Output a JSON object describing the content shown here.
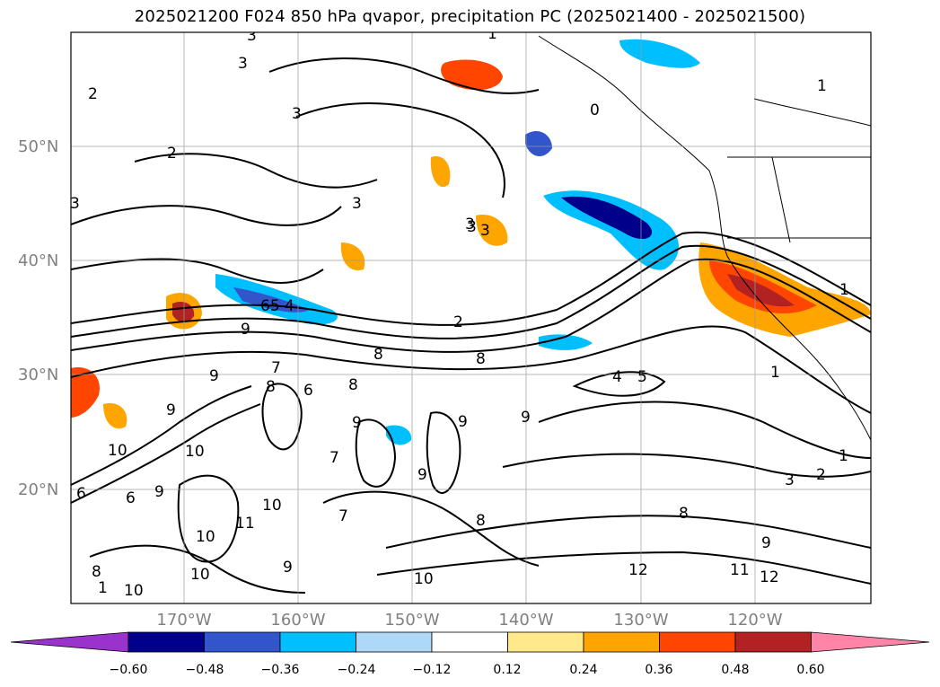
{
  "chart_data": {
    "type": "contour",
    "title": "2025021200 F024 850 hPa qvapor, precipitation PC (2025021400 - 2025021500)",
    "lon_range": [
      -180,
      -110
    ],
    "lat_range": [
      10,
      60
    ],
    "x_tick_labels": [
      "170°W",
      "160°W",
      "150°W",
      "140°W",
      "130°W",
      "120°W"
    ],
    "x_ticks": [
      -170,
      -160,
      -150,
      -140,
      -130,
      -120
    ],
    "y_tick_labels": [
      "20°N",
      "30°N",
      "40°N",
      "50°N"
    ],
    "y_ticks": [
      20,
      30,
      40,
      50
    ],
    "grid": true,
    "colorbar": {
      "orientation": "horizontal",
      "extend": "both",
      "levels": [
        -0.6,
        -0.48,
        -0.36,
        -0.24,
        -0.12,
        0.12,
        0.24,
        0.36,
        0.48,
        0.6
      ],
      "tick_labels": [
        "−0.60",
        "−0.48",
        "−0.36",
        "−0.24",
        "−0.12",
        "0.12",
        "0.24",
        "0.36",
        "0.48",
        "0.60"
      ],
      "colors": [
        "#9933cc",
        "#00008b",
        "#3355cc",
        "#00bfff",
        "#add8f7",
        "#ffffff",
        "#ffe98a",
        "#ffa500",
        "#ff4500",
        "#b22222",
        "#ff85a8"
      ]
    },
    "contour_labels": [
      {
        "text": "3"
      },
      {
        "text": "1"
      },
      {
        "text": "3"
      },
      {
        "text": "2"
      },
      {
        "text": "3"
      },
      {
        "text": "2"
      },
      {
        "text": "3"
      },
      {
        "text": "3"
      },
      {
        "text": "0"
      },
      {
        "text": "1"
      },
      {
        "text": "3"
      },
      {
        "text": "3"
      },
      {
        "text": "3"
      },
      {
        "text": "65 4"
      },
      {
        "text": "2"
      },
      {
        "text": "1"
      },
      {
        "text": "9"
      },
      {
        "text": "9"
      },
      {
        "text": "8"
      },
      {
        "text": "8"
      },
      {
        "text": "7"
      },
      {
        "text": "8"
      },
      {
        "text": "6"
      },
      {
        "text": "8"
      },
      {
        "text": "4"
      },
      {
        "text": "5"
      },
      {
        "text": "1"
      },
      {
        "text": "9"
      },
      {
        "text": "9"
      },
      {
        "text": "10"
      },
      {
        "text": "10"
      },
      {
        "text": "7"
      },
      {
        "text": "9"
      },
      {
        "text": "9"
      },
      {
        "text": "6"
      },
      {
        "text": "6"
      },
      {
        "text": "9"
      },
      {
        "text": "10"
      },
      {
        "text": "11"
      },
      {
        "text": "10"
      },
      {
        "text": "10"
      },
      {
        "text": "9"
      },
      {
        "text": "7"
      },
      {
        "text": "10"
      },
      {
        "text": "12"
      },
      {
        "text": "11"
      },
      {
        "text": "12"
      },
      {
        "text": "9"
      },
      {
        "text": "8"
      },
      {
        "text": "3"
      },
      {
        "text": "2"
      },
      {
        "text": "1"
      },
      {
        "text": "1"
      },
      {
        "text": "10"
      },
      {
        "text": "8"
      },
      {
        "text": "9"
      },
      {
        "text": "8"
      }
    ]
  }
}
